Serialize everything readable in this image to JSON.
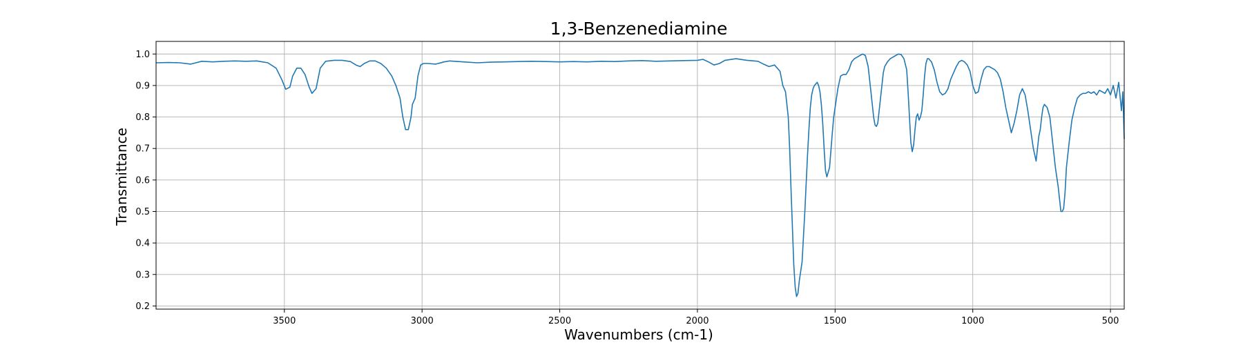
{
  "chart_data": {
    "type": "line",
    "title": "1,3-Benzenediamine",
    "xlabel": "Wavenumbers (cm-1)",
    "ylabel": "Transmittance",
    "xlim": [
      3966,
      450
    ],
    "ylim": [
      0.19,
      1.04
    ],
    "x_reversed": true,
    "grid": true,
    "x_ticks": [
      3500,
      3000,
      2500,
      2000,
      1500,
      1000,
      500
    ],
    "x_tick_labels": [
      "3500",
      "3000",
      "2500",
      "2000",
      "1500",
      "1000",
      "500"
    ],
    "y_ticks": [
      0.2,
      0.3,
      0.4,
      0.5,
      0.6,
      0.7,
      0.8,
      0.9,
      1.0
    ],
    "y_tick_labels": [
      "0.2",
      "0.3",
      "0.4",
      "0.5",
      "0.6",
      "0.7",
      "0.8",
      "0.9",
      "1.0"
    ],
    "line_color": "#1f77b4",
    "series": [
      {
        "x": [
          3966,
          3920,
          3880,
          3840,
          3800,
          3760,
          3720,
          3680,
          3640,
          3600,
          3560,
          3530,
          3510,
          3495,
          3480,
          3470,
          3455,
          3440,
          3425,
          3410,
          3400,
          3385,
          3370,
          3350,
          3320,
          3290,
          3260,
          3240,
          3225,
          3210,
          3190,
          3170,
          3150,
          3130,
          3110,
          3095,
          3080,
          3070,
          3060,
          3050,
          3040,
          3035,
          3025,
          3015,
          3005,
          2995,
          2980,
          2950,
          2920,
          2900,
          2850,
          2800,
          2750,
          2700,
          2650,
          2600,
          2550,
          2500,
          2450,
          2400,
          2350,
          2300,
          2250,
          2200,
          2150,
          2100,
          2050,
          2000,
          1980,
          1960,
          1940,
          1920,
          1900,
          1860,
          1820,
          1780,
          1760,
          1740,
          1720,
          1700,
          1690,
          1680,
          1670,
          1665,
          1660,
          1655,
          1650,
          1645,
          1640,
          1635,
          1630,
          1625,
          1620,
          1610,
          1600,
          1595,
          1590,
          1585,
          1580,
          1575,
          1570,
          1565,
          1560,
          1555,
          1550,
          1545,
          1540,
          1535,
          1530,
          1520,
          1510,
          1505,
          1500,
          1495,
          1490,
          1485,
          1480,
          1470,
          1460,
          1450,
          1440,
          1430,
          1420,
          1410,
          1400,
          1390,
          1380,
          1370,
          1360,
          1355,
          1350,
          1345,
          1340,
          1335,
          1330,
          1325,
          1320,
          1310,
          1300,
          1290,
          1280,
          1270,
          1260,
          1250,
          1240,
          1235,
          1230,
          1225,
          1220,
          1215,
          1210,
          1205,
          1200,
          1195,
          1190,
          1185,
          1180,
          1175,
          1170,
          1165,
          1160,
          1150,
          1140,
          1130,
          1120,
          1110,
          1100,
          1090,
          1080,
          1070,
          1060,
          1050,
          1040,
          1030,
          1020,
          1010,
          1000,
          990,
          980,
          970,
          960,
          950,
          940,
          930,
          920,
          910,
          900,
          890,
          880,
          870,
          860,
          850,
          840,
          830,
          820,
          810,
          800,
          790,
          780,
          770,
          765,
          760,
          755,
          750,
          745,
          740,
          730,
          720,
          710,
          700,
          690,
          680,
          675,
          670,
          665,
          660,
          650,
          640,
          630,
          620,
          610,
          600,
          590,
          580,
          570,
          560,
          550,
          540,
          530,
          520,
          510,
          500,
          490,
          480,
          470,
          460,
          455,
          450
        ],
        "y": [
          0.972,
          0.973,
          0.972,
          0.968,
          0.977,
          0.975,
          0.977,
          0.978,
          0.977,
          0.978,
          0.972,
          0.955,
          0.92,
          0.888,
          0.895,
          0.93,
          0.955,
          0.955,
          0.935,
          0.895,
          0.875,
          0.89,
          0.955,
          0.977,
          0.98,
          0.98,
          0.976,
          0.965,
          0.96,
          0.97,
          0.978,
          0.978,
          0.97,
          0.955,
          0.93,
          0.9,
          0.86,
          0.8,
          0.76,
          0.76,
          0.8,
          0.84,
          0.86,
          0.93,
          0.965,
          0.97,
          0.97,
          0.968,
          0.975,
          0.978,
          0.975,
          0.972,
          0.974,
          0.975,
          0.976,
          0.977,
          0.976,
          0.975,
          0.976,
          0.975,
          0.977,
          0.976,
          0.978,
          0.979,
          0.977,
          0.978,
          0.979,
          0.98,
          0.983,
          0.975,
          0.965,
          0.97,
          0.98,
          0.985,
          0.98,
          0.977,
          0.968,
          0.96,
          0.965,
          0.945,
          0.9,
          0.88,
          0.8,
          0.7,
          0.57,
          0.45,
          0.33,
          0.26,
          0.23,
          0.24,
          0.28,
          0.31,
          0.34,
          0.5,
          0.68,
          0.76,
          0.83,
          0.87,
          0.89,
          0.9,
          0.905,
          0.91,
          0.9,
          0.88,
          0.84,
          0.78,
          0.7,
          0.63,
          0.61,
          0.64,
          0.75,
          0.8,
          0.83,
          0.86,
          0.89,
          0.91,
          0.93,
          0.935,
          0.935,
          0.95,
          0.975,
          0.985,
          0.99,
          0.995,
          1.0,
          0.995,
          0.96,
          0.88,
          0.8,
          0.775,
          0.77,
          0.78,
          0.82,
          0.86,
          0.9,
          0.94,
          0.96,
          0.975,
          0.985,
          0.99,
          0.995,
          1.0,
          0.998,
          0.985,
          0.95,
          0.88,
          0.8,
          0.72,
          0.69,
          0.71,
          0.76,
          0.8,
          0.81,
          0.79,
          0.8,
          0.82,
          0.87,
          0.93,
          0.97,
          0.985,
          0.985,
          0.975,
          0.95,
          0.91,
          0.88,
          0.87,
          0.875,
          0.89,
          0.92,
          0.94,
          0.96,
          0.975,
          0.98,
          0.975,
          0.965,
          0.945,
          0.9,
          0.875,
          0.88,
          0.92,
          0.95,
          0.96,
          0.96,
          0.955,
          0.95,
          0.94,
          0.92,
          0.88,
          0.83,
          0.79,
          0.75,
          0.78,
          0.82,
          0.87,
          0.89,
          0.87,
          0.82,
          0.76,
          0.7,
          0.66,
          0.7,
          0.74,
          0.76,
          0.8,
          0.83,
          0.84,
          0.83,
          0.8,
          0.72,
          0.64,
          0.58,
          0.5,
          0.5,
          0.51,
          0.56,
          0.64,
          0.72,
          0.79,
          0.83,
          0.86,
          0.87,
          0.875,
          0.875,
          0.88,
          0.875,
          0.88,
          0.87,
          0.885,
          0.88,
          0.875,
          0.89,
          0.87,
          0.9,
          0.86,
          0.91,
          0.82,
          0.88,
          0.73
        ]
      }
    ]
  }
}
